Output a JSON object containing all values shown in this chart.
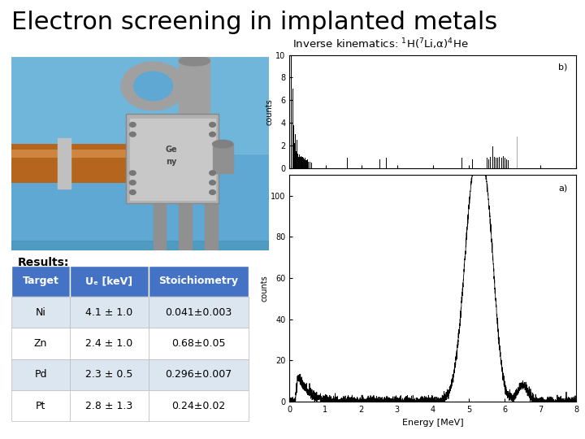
{
  "title": "Electron screening in implanted metals",
  "title_fontsize": 22,
  "title_color": "#000000",
  "background_color": "#ffffff",
  "inverse_kinematics_text": "Inverse kinematics: $^{1}$H($^{7}$Li,α)$^{4}$He",
  "results_label": "Results:",
  "table_headers": [
    "Target",
    "Uₑ [keV]",
    "Stoichiometry"
  ],
  "table_rows": [
    [
      "Ni",
      "4.1 ± 1.0",
      "0.041±0.003"
    ],
    [
      "Zn",
      "2.4 ± 1.0",
      "0.68±0.05"
    ],
    [
      "Pd",
      "2.3 ± 0.5",
      "0.296±0.007"
    ],
    [
      "Pt",
      "2.8 ± 1.3",
      "0.24±0.02"
    ]
  ],
  "table_header_bg": "#4472c4",
  "table_header_fg": "#ffffff",
  "table_row_bg_odd": "#dce6f1",
  "table_row_bg_even": "#ffffff",
  "plot_b_label": "b)",
  "plot_a_label": "a)",
  "plot_xlabel": "Energy [MeV]",
  "plot_a_ylim": [
    0,
    110
  ],
  "plot_b_ylim": [
    0,
    10
  ],
  "plot_xlim": [
    0,
    8
  ],
  "plot_xticks": [
    0,
    1,
    2,
    3,
    4,
    5,
    6,
    7,
    8
  ],
  "plot_a_yticks": [
    0,
    20,
    40,
    60,
    80,
    100
  ],
  "plot_b_yticks": [
    0,
    2,
    4,
    6,
    8,
    10
  ]
}
